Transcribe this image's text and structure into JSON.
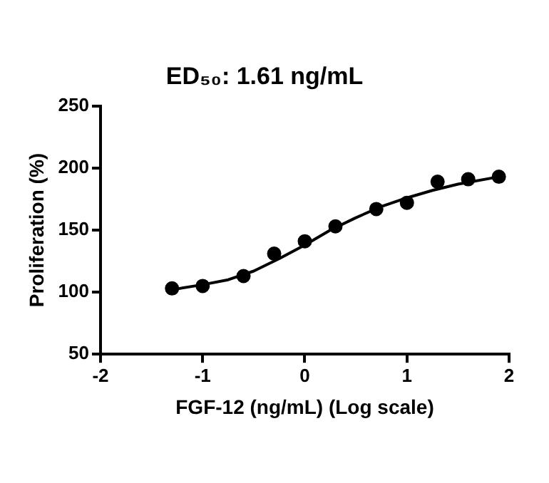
{
  "chart_data": {
    "type": "scatter",
    "title": "ED₅₀: 1.61 ng/mL",
    "xlabel": "FGF-12 (ng/mL) (Log scale)",
    "ylabel": "Proliferation (%)",
    "xlim": [
      -2,
      2
    ],
    "xticks": [
      -2,
      -1,
      0,
      1,
      2
    ],
    "ylim": [
      50,
      250
    ],
    "yticks": [
      50,
      100,
      150,
      200,
      250
    ],
    "grid": false,
    "legend": false,
    "marker": "circle",
    "series": [
      {
        "color": "#000000",
        "x": [
          -1.3,
          -1,
          -0.6,
          -0.3,
          0,
          0.3,
          0.7,
          1,
          1.3,
          1.6,
          1.9
        ],
        "values": [
          103,
          105,
          113,
          131,
          141,
          153,
          167,
          172,
          189,
          191,
          193
        ]
      },
      {
        "type": "line",
        "color": "#000000",
        "line_style": "solid",
        "marker": "none",
        "x": [
          -1.3,
          -1,
          -0.75,
          -0.5,
          -0.25,
          0,
          0.25,
          0.5,
          0.75,
          1,
          1.25,
          1.5,
          1.9
        ],
        "values": [
          102,
          106,
          110,
          117,
          127,
          138,
          150,
          160,
          169,
          176,
          182,
          187,
          193
        ]
      }
    ]
  }
}
